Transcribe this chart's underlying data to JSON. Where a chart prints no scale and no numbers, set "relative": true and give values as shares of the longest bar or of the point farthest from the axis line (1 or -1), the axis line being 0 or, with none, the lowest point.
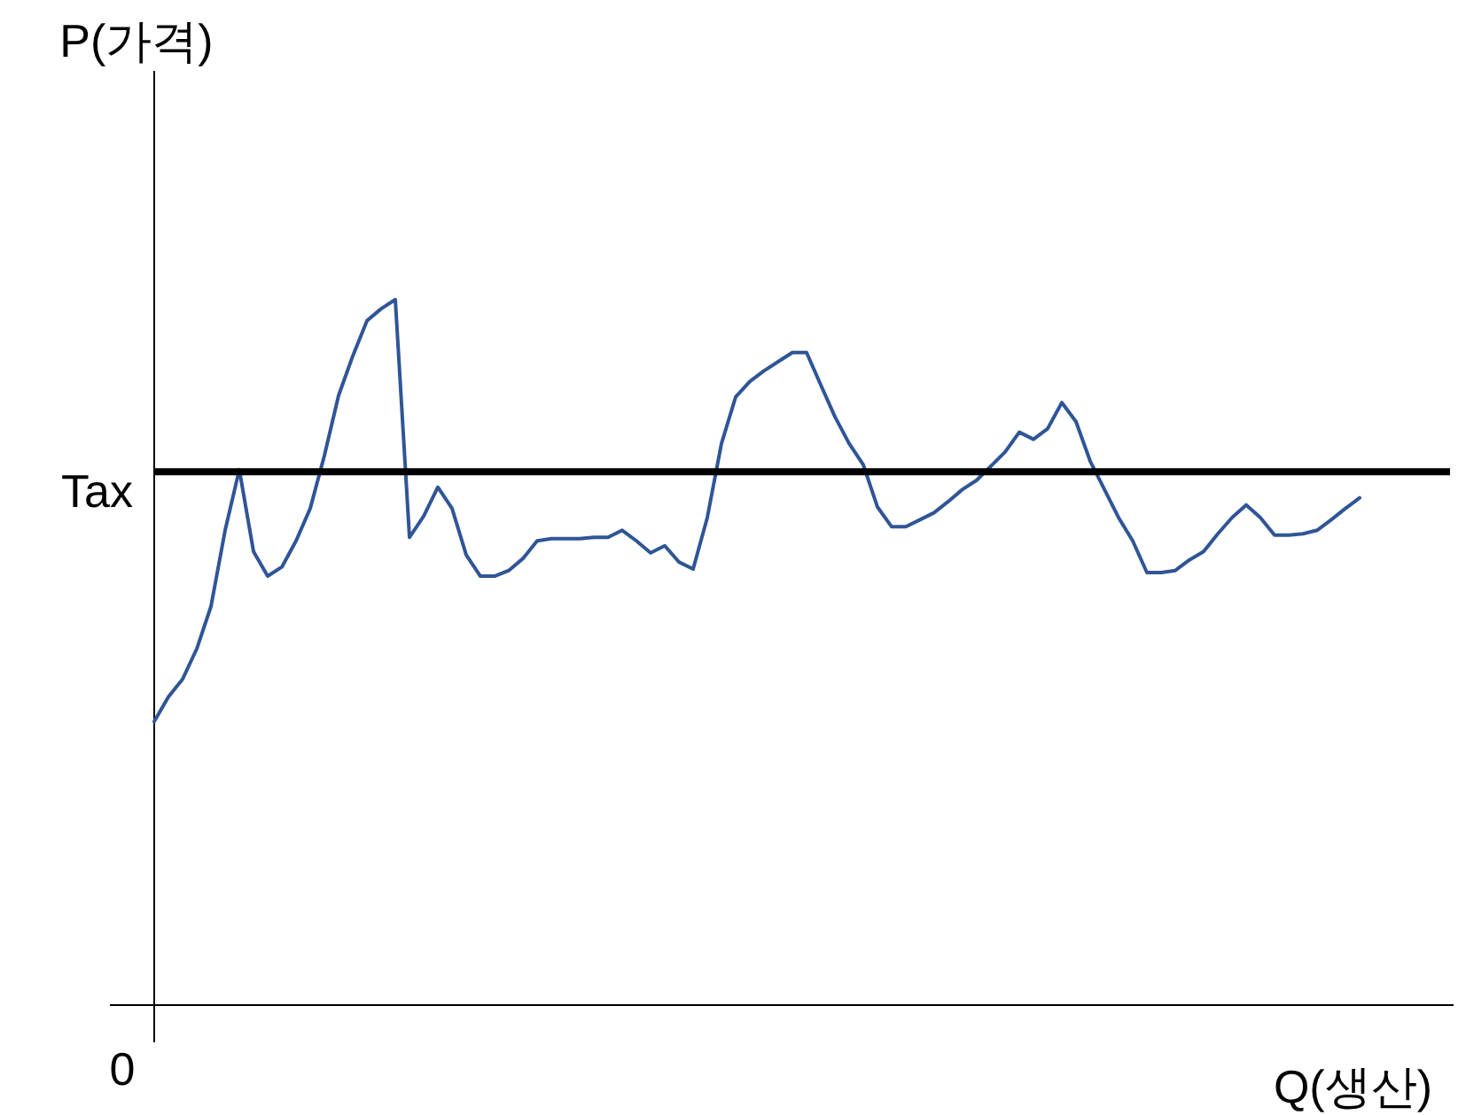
{
  "chart_data": {
    "type": "line",
    "relative": true,
    "xlabel": "Q(생산)",
    "categories": [
      null,
      null,
      null,
      null,
      null,
      null,
      null,
      null,
      null,
      null,
      null,
      null,
      null,
      null,
      null,
      null,
      null,
      null,
      null,
      null,
      null,
      null,
      null,
      null,
      null,
      null,
      null,
      null,
      null,
      null,
      null,
      null,
      null,
      null,
      null,
      null,
      null,
      null,
      null,
      null,
      null,
      null,
      null,
      null,
      null,
      null,
      null,
      null,
      null,
      null,
      null,
      null,
      null,
      null,
      null,
      null,
      null,
      null,
      null,
      null,
      null,
      null,
      null,
      null,
      null,
      null,
      null,
      null,
      null,
      null,
      null,
      null,
      null,
      null,
      null,
      null,
      null,
      null,
      null,
      null,
      null,
      null,
      null,
      null,
      null,
      null
    ],
    "series": [
      {
        "color": "#2f5597",
        "values": [
          0.402,
          0.437,
          0.462,
          0.505,
          0.565,
          0.673,
          0.759,
          0.643,
          0.608,
          0.621,
          0.658,
          0.704,
          0.779,
          0.864,
          0.92,
          0.97,
          0.987,
          1,
          0.663,
          0.693,
          0.734,
          0.704,
          0.638,
          0.608,
          0.608,
          0.616,
          0.633,
          0.658,
          0.661,
          0.661,
          0.661,
          0.663,
          0.663,
          0.673,
          0.658,
          0.641,
          0.651,
          0.628,
          0.618,
          0.691,
          0.796,
          0.862,
          0.884,
          0.899,
          0.912,
          0.925,
          0.925,
          0.879,
          0.834,
          0.796,
          0.766,
          0.706,
          0.678,
          0.678,
          0.688,
          0.698,
          0.714,
          0.731,
          0.744,
          0.764,
          0.784,
          0.812,
          0.802,
          0.817,
          0.854,
          0.827,
          0.771,
          0.731,
          0.691,
          0.658,
          0.613,
          0.613,
          0.616,
          0.631,
          0.643,
          0.668,
          0.691,
          0.709,
          0.691,
          0.666,
          0.666,
          0.668,
          0.673,
          0.688,
          0.704,
          0.719
        ]
      }
    ],
    "ref_lines": [
      {
        "axis": "y",
        "value": 0.756,
        "label": "Tax",
        "color": "#000000"
      }
    ],
    "annotations": [
      "0",
      "P(가격)"
    ]
  }
}
